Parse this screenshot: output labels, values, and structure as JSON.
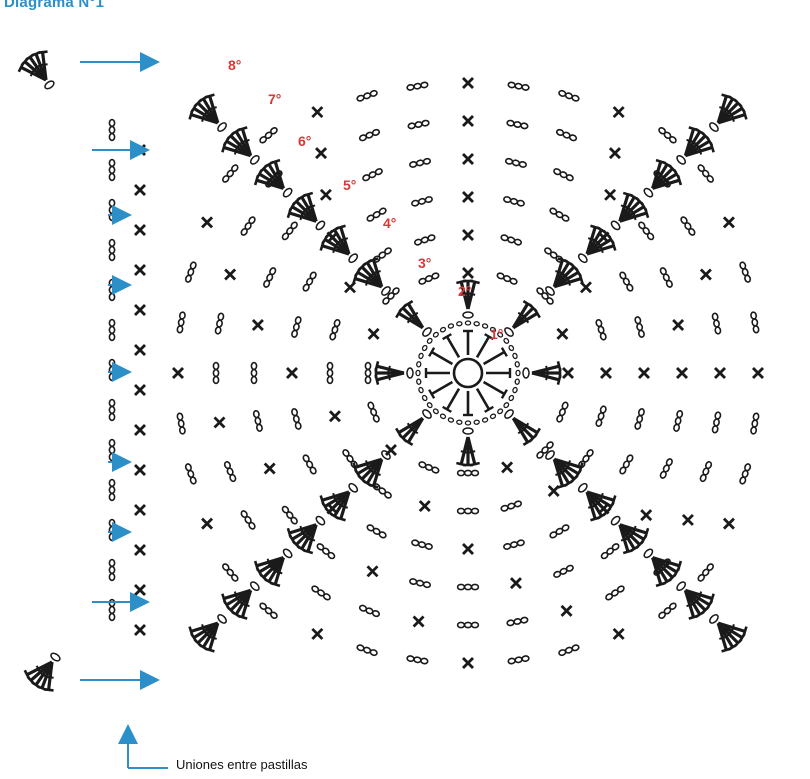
{
  "title": "Diagrama N°1",
  "caption": "Uniones entre pastillas",
  "rounds": [
    "1°",
    "2°",
    "3°",
    "4°",
    "5°",
    "6°",
    "7°",
    "8°"
  ],
  "colors": {
    "title": "#2d8fc8",
    "arrow": "#2d8fc8",
    "round_label": "#d83838",
    "stitch": "#1a1a1a"
  },
  "legend_icons": [
    "chain-stitch-icon",
    "single-crochet-icon",
    "double-crochet-fan-icon",
    "arrow-icon"
  ]
}
